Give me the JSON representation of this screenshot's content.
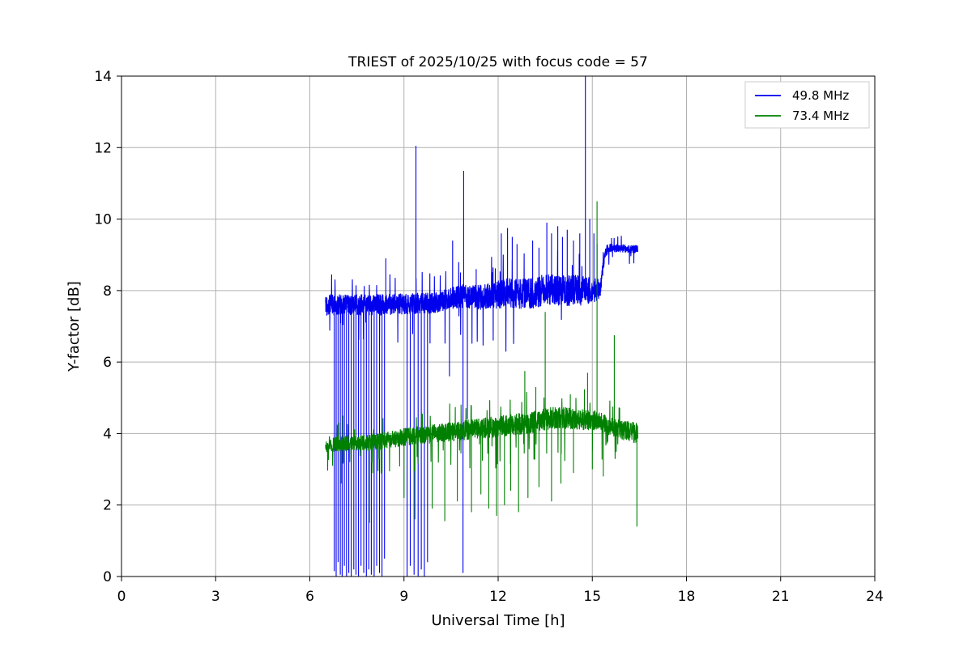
{
  "chart_data": {
    "type": "line",
    "title": "TRIEST of 2025/10/25 with focus code = 57",
    "xlabel": "Universal Time [h]",
    "ylabel": "Y-factor [dB]",
    "xlim": [
      0,
      24
    ],
    "ylim": [
      0,
      14
    ],
    "xticks": [
      0,
      3,
      6,
      9,
      12,
      15,
      18,
      21,
      24
    ],
    "yticks": [
      0,
      2,
      4,
      6,
      8,
      10,
      12,
      14
    ],
    "grid": true,
    "legend_position": "upper right",
    "series": [
      {
        "name": "49.8 MHz",
        "color": "#0000ee",
        "x_range": [
          6.5,
          16.45
        ],
        "baseline": [
          [
            6.5,
            7.6
          ],
          [
            8.0,
            7.6
          ],
          [
            9.0,
            7.62
          ],
          [
            10.0,
            7.65
          ],
          [
            10.8,
            7.85
          ],
          [
            11.5,
            7.8
          ],
          [
            12.3,
            7.95
          ],
          [
            13.0,
            7.9
          ],
          [
            13.6,
            8.05
          ],
          [
            14.3,
            8.0
          ],
          [
            15.0,
            8.0
          ],
          [
            15.25,
            8.05
          ],
          [
            15.4,
            9.0
          ],
          [
            15.5,
            9.2
          ],
          [
            16.45,
            9.15
          ]
        ],
        "noise_amp": [
          [
            6.5,
            0.3
          ],
          [
            10.0,
            0.3
          ],
          [
            11.0,
            0.33
          ],
          [
            12.0,
            0.4
          ],
          [
            13.0,
            0.45
          ],
          [
            14.5,
            0.45
          ],
          [
            15.1,
            0.35
          ],
          [
            15.35,
            0.18
          ],
          [
            15.55,
            0.12
          ],
          [
            16.45,
            0.12
          ]
        ],
        "spikes_down": [
          [
            6.78,
            0.15
          ],
          [
            6.84,
            0.0
          ],
          [
            6.9,
            0.4
          ],
          [
            6.97,
            0.05
          ],
          [
            7.03,
            0.0
          ],
          [
            7.1,
            0.3
          ],
          [
            7.17,
            0.0
          ],
          [
            7.24,
            0.1
          ],
          [
            7.32,
            0.0
          ],
          [
            7.4,
            0.2
          ],
          [
            7.47,
            0.05
          ],
          [
            7.55,
            0.0
          ],
          [
            7.63,
            0.3
          ],
          [
            7.72,
            0.1
          ],
          [
            7.8,
            0.0
          ],
          [
            7.88,
            0.2
          ],
          [
            7.96,
            0.05
          ],
          [
            8.05,
            0.0
          ],
          [
            8.13,
            0.3
          ],
          [
            8.22,
            0.1
          ],
          [
            8.3,
            0.0
          ],
          [
            8.38,
            0.5
          ],
          [
            9.1,
            0.0
          ],
          [
            9.2,
            0.3
          ],
          [
            9.32,
            0.05
          ],
          [
            9.45,
            0.0
          ],
          [
            9.55,
            0.2
          ],
          [
            9.65,
            0.0
          ],
          [
            9.75,
            0.4
          ],
          [
            10.45,
            5.6
          ],
          [
            10.88,
            0.1
          ],
          [
            11.02,
            4.4
          ]
        ],
        "spikes_up": [
          [
            8.42,
            8.9
          ],
          [
            9.38,
            12.05
          ],
          [
            10.55,
            9.4
          ],
          [
            10.9,
            11.35
          ],
          [
            11.3,
            8.6
          ],
          [
            12.1,
            9.6
          ],
          [
            12.3,
            9.75
          ],
          [
            12.45,
            9.5
          ],
          [
            12.6,
            9.3
          ],
          [
            13.1,
            9.4
          ],
          [
            13.3,
            9.2
          ],
          [
            13.55,
            9.9
          ],
          [
            13.7,
            9.6
          ],
          [
            13.9,
            9.8
          ],
          [
            14.05,
            9.5
          ],
          [
            14.2,
            9.7
          ],
          [
            14.4,
            9.4
          ],
          [
            14.6,
            9.6
          ],
          [
            14.78,
            14.0
          ],
          [
            14.92,
            10.0
          ],
          [
            15.05,
            9.6
          ],
          [
            15.15,
            9.3
          ]
        ]
      },
      {
        "name": "73.4 MHz",
        "color": "#008000",
        "x_range": [
          6.5,
          16.45
        ],
        "baseline": [
          [
            6.5,
            3.7
          ],
          [
            8.0,
            3.75
          ],
          [
            9.0,
            3.9
          ],
          [
            10.0,
            4.0
          ],
          [
            11.0,
            4.1
          ],
          [
            12.0,
            4.2
          ],
          [
            13.0,
            4.3
          ],
          [
            13.8,
            4.45
          ],
          [
            14.5,
            4.4
          ],
          [
            15.2,
            4.35
          ],
          [
            15.7,
            4.15
          ],
          [
            16.45,
            4.0
          ]
        ],
        "noise_amp": [
          [
            6.5,
            0.22
          ],
          [
            9.0,
            0.25
          ],
          [
            12.0,
            0.3
          ],
          [
            14.0,
            0.32
          ],
          [
            15.5,
            0.26
          ],
          [
            16.45,
            0.3
          ]
        ],
        "spikes_down": [
          [
            7.0,
            2.6
          ],
          [
            7.9,
            1.5
          ],
          [
            8.3,
            2.9
          ],
          [
            9.0,
            2.2
          ],
          [
            9.35,
            1.6
          ],
          [
            9.9,
            1.9
          ],
          [
            10.3,
            1.55
          ],
          [
            10.7,
            2.1
          ],
          [
            11.15,
            1.8
          ],
          [
            11.45,
            2.3
          ],
          [
            11.7,
            1.9
          ],
          [
            11.95,
            1.7
          ],
          [
            12.2,
            2.0
          ],
          [
            12.4,
            2.4
          ],
          [
            12.65,
            1.8
          ],
          [
            12.95,
            2.2
          ],
          [
            13.3,
            2.5
          ],
          [
            13.7,
            2.1
          ],
          [
            14.0,
            2.6
          ],
          [
            14.4,
            2.9
          ],
          [
            15.0,
            3.0
          ],
          [
            15.35,
            2.8
          ],
          [
            16.42,
            1.4
          ]
        ],
        "spikes_up": [
          [
            7.05,
            4.5
          ],
          [
            12.85,
            5.75
          ],
          [
            13.2,
            5.3
          ],
          [
            13.5,
            7.4
          ],
          [
            14.3,
            5.1
          ],
          [
            14.85,
            5.7
          ],
          [
            15.15,
            10.5
          ],
          [
            15.7,
            6.75
          ]
        ]
      }
    ]
  }
}
